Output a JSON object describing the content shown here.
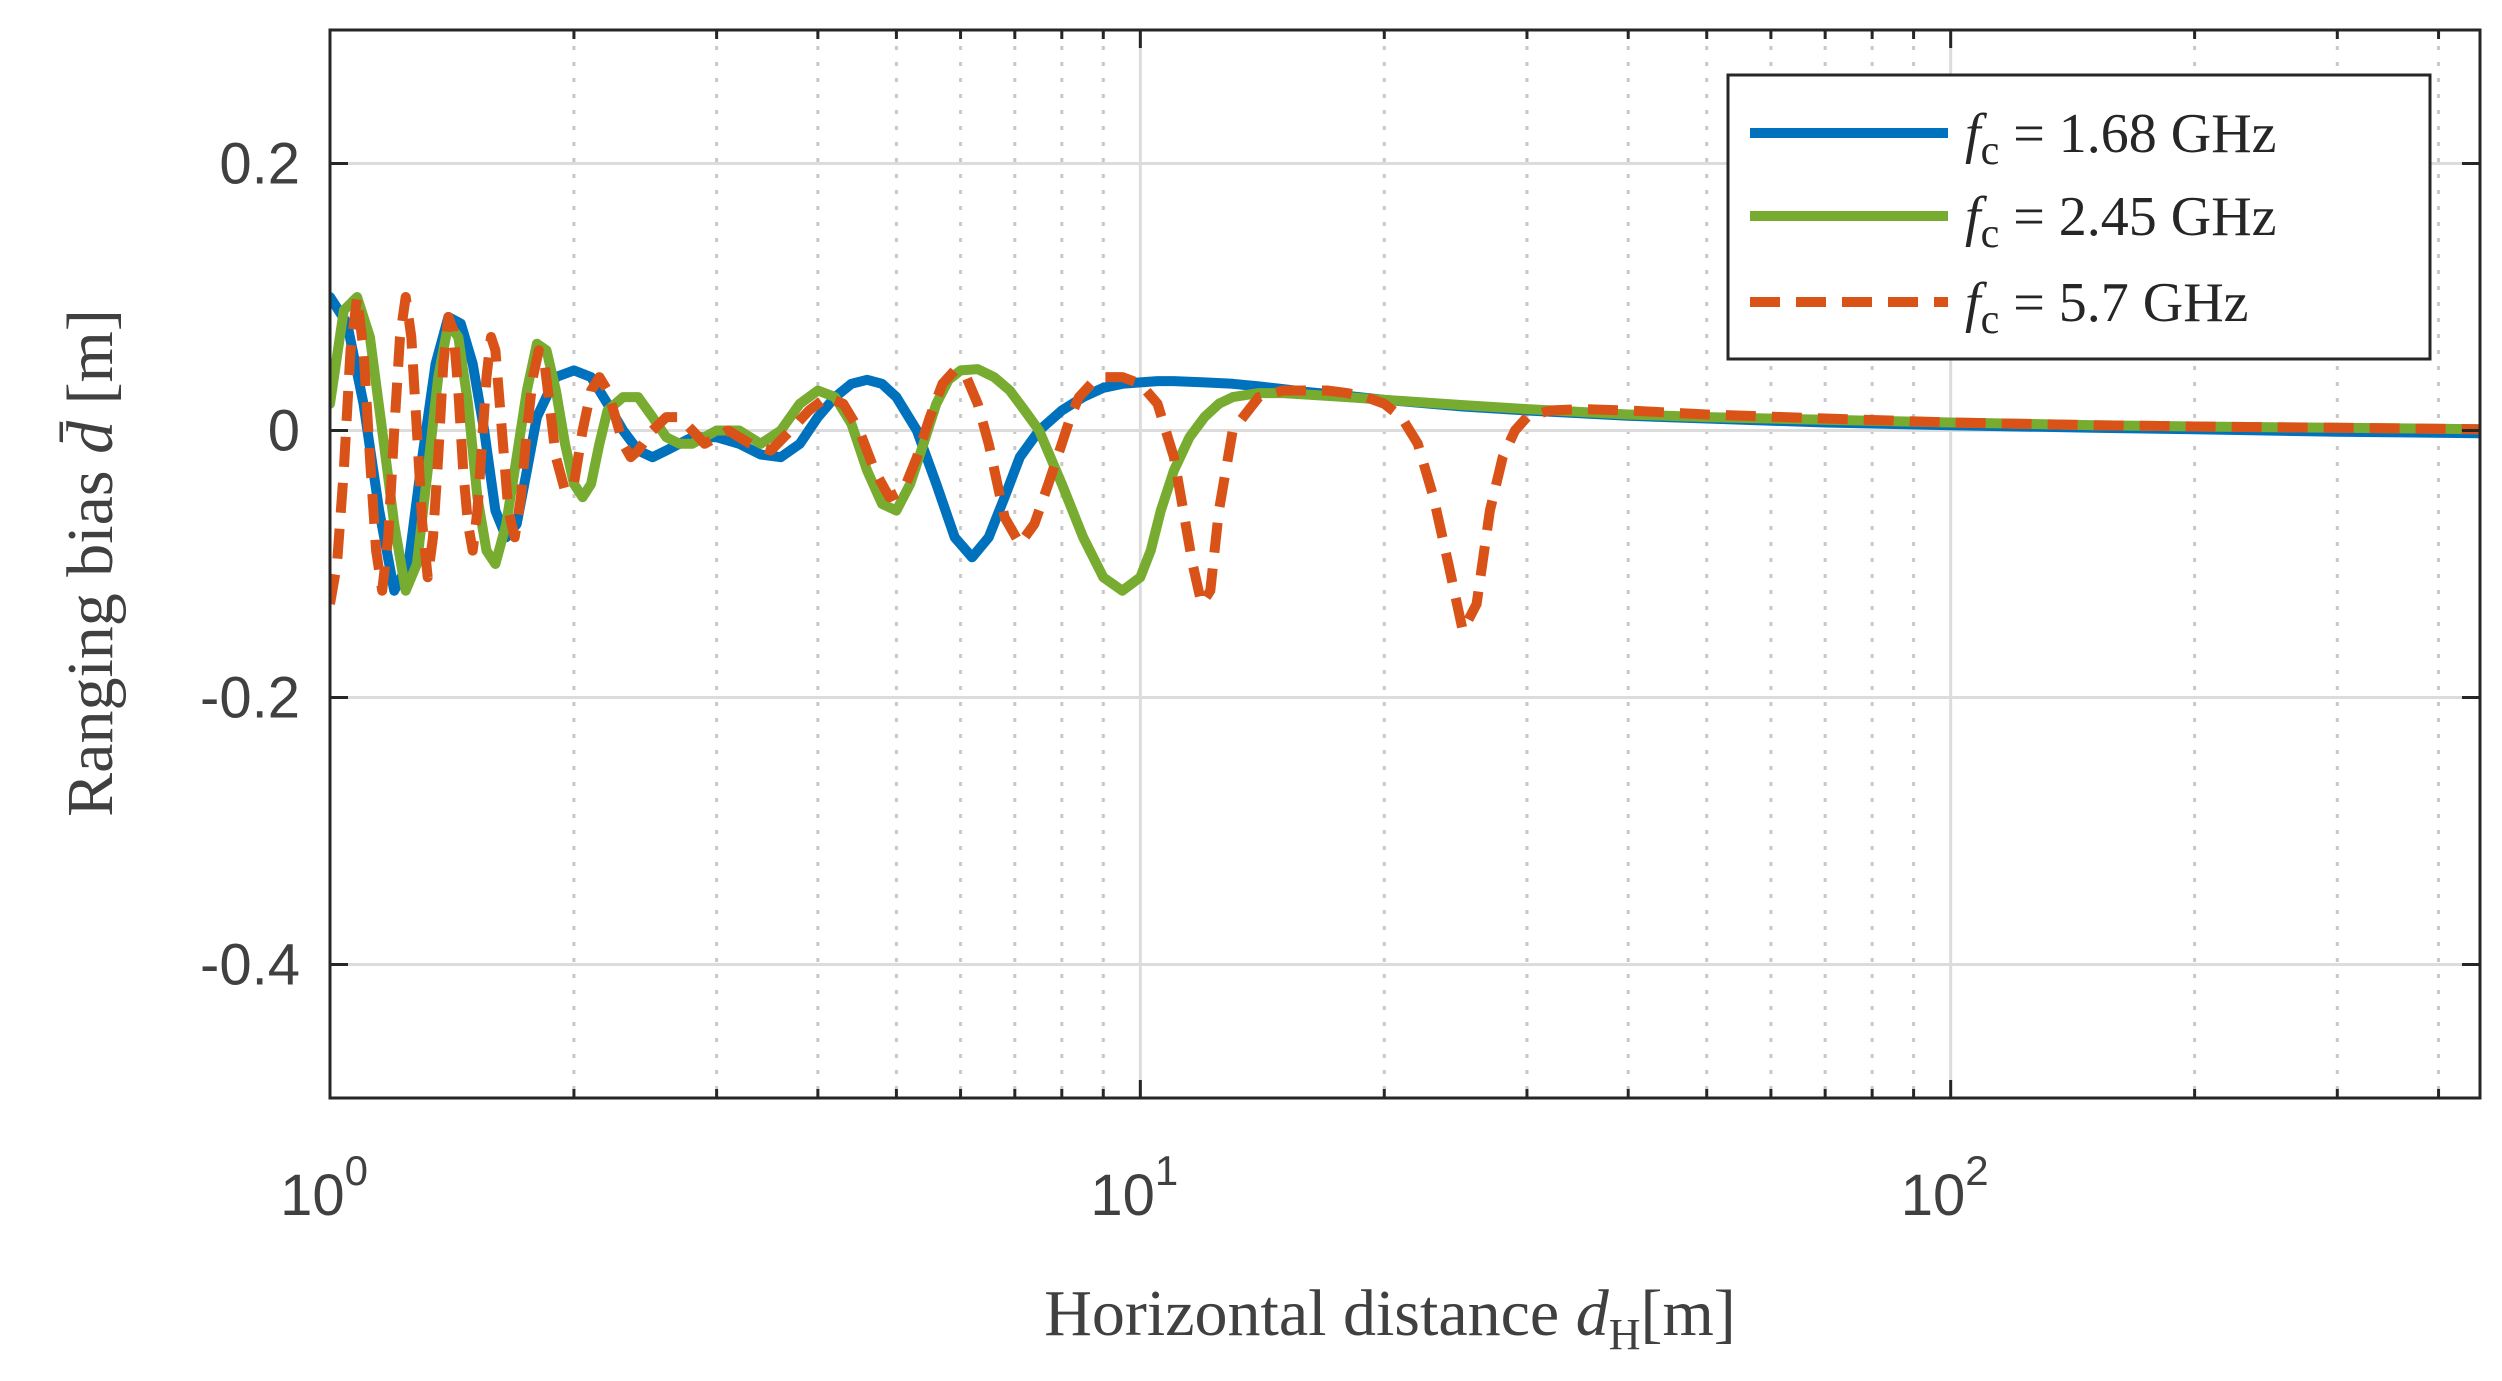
{
  "chart_data": {
    "type": "line",
    "xscale": "log",
    "xlim": [
      1,
      450
    ],
    "ylim": [
      -0.5,
      0.3
    ],
    "xlabel_text": "Horizontal distance",
    "xlabel_symbol": "d",
    "xlabel_subscript": "H",
    "xlabel_unit": "[m]",
    "ylabel_text": "Ranging bias",
    "ylabel_symbol": "d̄",
    "ylabel_unit": "[m]",
    "yticks": [
      0.2,
      0,
      -0.2,
      -0.4
    ],
    "ytick_labels": [
      "0.2",
      "0",
      "-0.2",
      "-0.4"
    ],
    "xticks": [
      1,
      10,
      100
    ],
    "xtick_base": "10",
    "xtick_exponents": [
      "0",
      "1",
      "2"
    ],
    "grid": true,
    "legend_position": "top-right",
    "colors": {
      "blue": "#0072BD",
      "green": "#77AC30",
      "orange": "#D95319"
    },
    "series": [
      {
        "name": "f_c = 1.68 GHz",
        "legend_symbol": "f",
        "legend_subscript": "c",
        "legend_value": "= 1.68 GHz",
        "color": "#0072BD",
        "dash": "solid",
        "x": [
          1.0,
          1.05,
          1.1,
          1.15,
          1.2,
          1.25,
          1.3,
          1.35,
          1.4,
          1.45,
          1.5,
          1.55,
          1.6,
          1.65,
          1.7,
          1.75,
          1.8,
          1.9,
          2.0,
          2.1,
          2.2,
          2.3,
          2.4,
          2.5,
          2.6,
          2.8,
          3.0,
          3.2,
          3.4,
          3.6,
          3.8,
          4.0,
          4.2,
          4.4,
          4.6,
          4.8,
          5.0,
          5.3,
          5.6,
          5.9,
          6.2,
          6.5,
          6.8,
          7.1,
          7.5,
          8.0,
          8.5,
          9.0,
          9.5,
          10.0,
          10.5,
          11.0,
          12.0,
          13.0,
          14.0,
          15.0,
          16.0,
          18.0,
          20.0,
          25.0,
          30.0,
          40.0,
          50.0,
          70.0,
          100.0,
          150.0,
          200.0,
          300.0,
          450.0
        ],
        "y": [
          0.1,
          0.08,
          0.02,
          -0.06,
          -0.12,
          -0.1,
          -0.02,
          0.05,
          0.085,
          0.08,
          0.05,
          0.0,
          -0.06,
          -0.08,
          -0.07,
          -0.03,
          0.01,
          0.04,
          0.045,
          0.04,
          0.02,
          0.0,
          -0.015,
          -0.02,
          -0.015,
          -0.005,
          -0.005,
          -0.01,
          -0.018,
          -0.02,
          -0.01,
          0.01,
          0.025,
          0.035,
          0.038,
          0.035,
          0.025,
          0.0,
          -0.04,
          -0.08,
          -0.095,
          -0.08,
          -0.05,
          -0.02,
          0.0,
          0.015,
          0.025,
          0.032,
          0.035,
          0.036,
          0.037,
          0.037,
          0.036,
          0.035,
          0.033,
          0.031,
          0.029,
          0.026,
          0.023,
          0.018,
          0.015,
          0.011,
          0.009,
          0.006,
          0.004,
          0.002,
          0.001,
          -0.001,
          -0.002
        ]
      },
      {
        "name": "f_c = 2.45 GHz",
        "legend_symbol": "f",
        "legend_subscript": "c",
        "legend_value": "= 2.45 GHz",
        "color": "#77AC30",
        "dash": "solid",
        "x": [
          1.0,
          1.04,
          1.08,
          1.12,
          1.16,
          1.2,
          1.24,
          1.28,
          1.32,
          1.36,
          1.4,
          1.44,
          1.48,
          1.52,
          1.56,
          1.6,
          1.65,
          1.7,
          1.75,
          1.8,
          1.85,
          1.9,
          1.95,
          2.0,
          2.05,
          2.1,
          2.15,
          2.2,
          2.3,
          2.4,
          2.5,
          2.6,
          2.7,
          2.8,
          3.0,
          3.2,
          3.4,
          3.6,
          3.8,
          4.0,
          4.2,
          4.4,
          4.6,
          4.8,
          5.0,
          5.2,
          5.4,
          5.6,
          5.8,
          6.0,
          6.3,
          6.6,
          6.9,
          7.2,
          7.5,
          8.0,
          8.5,
          9.0,
          9.5,
          10.0,
          10.3,
          10.6,
          11.0,
          11.5,
          12.0,
          12.5,
          13.0,
          14.0,
          15.0,
          16.0,
          18.0,
          20.0,
          25.0,
          30.0,
          40.0,
          50.0,
          70.0,
          100.0,
          150.0,
          200.0,
          300.0,
          450.0
        ],
        "y": [
          0.02,
          0.09,
          0.1,
          0.07,
          0.0,
          -0.07,
          -0.12,
          -0.1,
          -0.03,
          0.04,
          0.08,
          0.07,
          0.02,
          -0.05,
          -0.09,
          -0.1,
          -0.07,
          -0.02,
          0.03,
          0.065,
          0.06,
          0.03,
          -0.01,
          -0.04,
          -0.05,
          -0.04,
          -0.01,
          0.015,
          0.025,
          0.025,
          0.01,
          -0.005,
          -0.01,
          -0.01,
          0.0,
          0.0,
          -0.01,
          0.0,
          0.02,
          0.03,
          0.025,
          0.005,
          -0.03,
          -0.055,
          -0.06,
          -0.04,
          -0.01,
          0.02,
          0.038,
          0.045,
          0.046,
          0.04,
          0.03,
          0.015,
          0.0,
          -0.04,
          -0.08,
          -0.11,
          -0.12,
          -0.11,
          -0.09,
          -0.06,
          -0.03,
          -0.005,
          0.01,
          0.02,
          0.025,
          0.028,
          0.028,
          0.027,
          0.025,
          0.023,
          0.019,
          0.016,
          0.012,
          0.01,
          0.008,
          0.006,
          0.004,
          0.003,
          0.002,
          0.001
        ]
      },
      {
        "name": "f_c = 5.7 GHz",
        "legend_symbol": "f",
        "legend_subscript": "c",
        "legend_value": "= 5.7 GHz",
        "color": "#D95319",
        "dash": "dashed",
        "x": [
          1.0,
          1.02,
          1.04,
          1.06,
          1.08,
          1.1,
          1.12,
          1.14,
          1.16,
          1.18,
          1.2,
          1.22,
          1.24,
          1.26,
          1.28,
          1.3,
          1.32,
          1.34,
          1.36,
          1.38,
          1.4,
          1.42,
          1.44,
          1.46,
          1.48,
          1.5,
          1.52,
          1.54,
          1.56,
          1.58,
          1.6,
          1.63,
          1.66,
          1.69,
          1.72,
          1.75,
          1.78,
          1.81,
          1.84,
          1.87,
          1.9,
          1.95,
          2.0,
          2.05,
          2.1,
          2.15,
          2.2,
          2.25,
          2.3,
          2.35,
          2.4,
          2.5,
          2.6,
          2.7,
          2.8,
          2.9,
          3.0,
          3.1,
          3.3,
          3.5,
          3.7,
          3.9,
          4.1,
          4.3,
          4.5,
          4.7,
          4.9,
          5.1,
          5.3,
          5.5,
          5.7,
          5.9,
          6.1,
          6.3,
          6.5,
          6.8,
          7.1,
          7.4,
          7.7,
          8.0,
          8.2,
          8.4,
          8.7,
          9.0,
          9.5,
          10.0,
          10.5,
          11.0,
          11.3,
          11.6,
          11.9,
          12.2,
          12.5,
          13.0,
          14.0,
          15.0,
          16.0,
          17.0,
          18.0,
          19.0,
          20.0,
          21.0,
          22.0,
          23.0,
          24.0,
          25.0,
          26.0,
          27.0,
          28.0,
          29.0,
          30.0,
          32.0,
          35.0,
          40.0,
          50.0,
          70.0,
          100.0,
          150.0,
          200.0,
          300.0,
          450.0
        ],
        "y": [
          -0.13,
          -0.1,
          -0.03,
          0.06,
          0.1,
          0.06,
          -0.02,
          -0.09,
          -0.12,
          -0.08,
          0.0,
          0.07,
          0.1,
          0.07,
          0.0,
          -0.07,
          -0.11,
          -0.08,
          -0.02,
          0.05,
          0.085,
          0.075,
          0.03,
          -0.03,
          -0.07,
          -0.09,
          -0.06,
          -0.01,
          0.04,
          0.07,
          0.06,
          0.0,
          -0.06,
          -0.08,
          -0.05,
          0.0,
          0.04,
          0.06,
          0.05,
          0.015,
          -0.02,
          -0.045,
          -0.04,
          0.0,
          0.03,
          0.04,
          0.03,
          0.01,
          -0.01,
          -0.02,
          -0.015,
          0.0,
          0.01,
          0.01,
          0.0,
          -0.01,
          -0.005,
          0.0,
          -0.01,
          -0.015,
          0.0,
          0.015,
          0.025,
          0.02,
          0.0,
          -0.03,
          -0.05,
          -0.045,
          -0.02,
          0.01,
          0.035,
          0.045,
          0.04,
          0.02,
          -0.01,
          -0.065,
          -0.085,
          -0.07,
          -0.04,
          -0.01,
          0.01,
          0.025,
          0.035,
          0.04,
          0.04,
          0.035,
          0.02,
          -0.02,
          -0.06,
          -0.1,
          -0.13,
          -0.12,
          -0.06,
          0.0,
          0.025,
          0.03,
          0.03,
          0.03,
          0.028,
          0.025,
          0.02,
          0.01,
          -0.01,
          -0.05,
          -0.1,
          -0.15,
          -0.13,
          -0.06,
          -0.02,
          0.0,
          0.01,
          0.015,
          0.016,
          0.015,
          0.012,
          0.009,
          0.006,
          0.004,
          0.003,
          0.002,
          0.001
        ]
      }
    ]
  }
}
